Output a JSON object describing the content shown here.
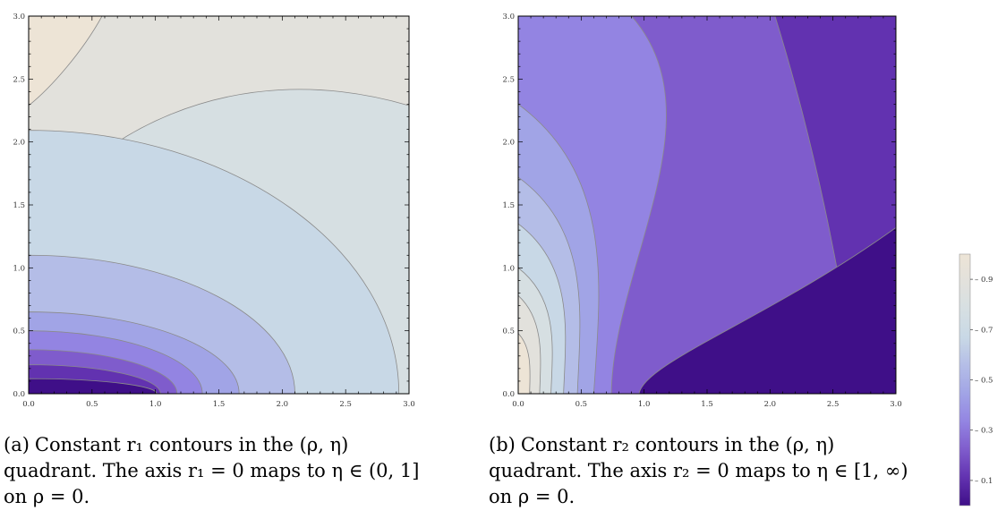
{
  "colors": {
    "levels": [
      "#3f0f88",
      "#6232b0",
      "#7f5ccc",
      "#9384e2",
      "#a1a4e6",
      "#b4bde7",
      "#c8d8e6",
      "#d6dfe2",
      "#e2e1dc",
      "#ede4d6"
    ],
    "contour_line": "#8a8a8a",
    "axis": "#000000"
  },
  "chart_data": [
    {
      "type": "contour",
      "panel": "a",
      "x_ticks": [
        "0.0",
        "0.5",
        "1.0",
        "1.5",
        "2.0",
        "2.5",
        "3.0"
      ],
      "y_ticks": [
        "0.0",
        "0.5",
        "1.0",
        "1.5",
        "2.0",
        "2.5",
        "3.0"
      ],
      "xlim": [
        0,
        3
      ],
      "ylim": [
        0,
        3
      ],
      "contours": [
        {
          "level": 0.1,
          "x_on_axis": 1.02
        },
        {
          "level": 0.2,
          "x_on_axis": 1.17
        },
        {
          "level": 0.3,
          "x_on_axis": 1.35
        },
        {
          "level": 0.4,
          "x_on_axis": 1.64
        },
        {
          "level": 0.5,
          "x_on_axis": 2.1
        },
        {
          "level": 0.6,
          "x_on_axis": 2.92
        },
        {
          "level": 0.7,
          "x_on_axis": null
        },
        {
          "level": 0.8,
          "x_on_axis": null
        },
        {
          "level": 0.9,
          "x_on_axis": null
        }
      ],
      "caption_label": "(a)",
      "caption": "Constant r₁ contours in the (ρ, η) quadrant. The axis r₁ = 0 maps to η ∈ (0, 1] on ρ = 0."
    },
    {
      "type": "contour",
      "panel": "b",
      "x_ticks": [
        "0.0",
        "0.5",
        "1.0",
        "1.5",
        "2.0",
        "2.5",
        "3.0"
      ],
      "y_ticks": [
        "0.0",
        "0.5",
        "1.0",
        "1.5",
        "2.0",
        "2.5",
        "3.0"
      ],
      "xlim": [
        0,
        3
      ],
      "ylim": [
        0,
        3
      ],
      "contours": [
        {
          "level": 0.1,
          "x_on_axis": 0.96
        },
        {
          "level": 0.2,
          "x_on_axis": 0.74
        },
        {
          "level": 0.3,
          "x_on_axis": 0.6
        },
        {
          "level": 0.4,
          "x_on_axis": 0.47
        },
        {
          "level": 0.5,
          "x_on_axis": 0.36
        },
        {
          "level": 0.6,
          "x_on_axis": 0.26
        },
        {
          "level": 0.7,
          "x_on_axis": 0.17
        },
        {
          "level": 0.8,
          "x_on_axis": 0.09
        },
        {
          "level": 0.9,
          "x_on_axis": 0.03
        }
      ],
      "caption_label": "(b)",
      "caption": "Constant r₂ contours in the (ρ, η) quadrant. The axis r₂ = 0 maps to η ∈ [1, ∞) on ρ = 0."
    }
  ],
  "legend": {
    "ticks": [
      "0.9",
      "0.7",
      "0.5",
      "0.3",
      "0.1"
    ]
  }
}
